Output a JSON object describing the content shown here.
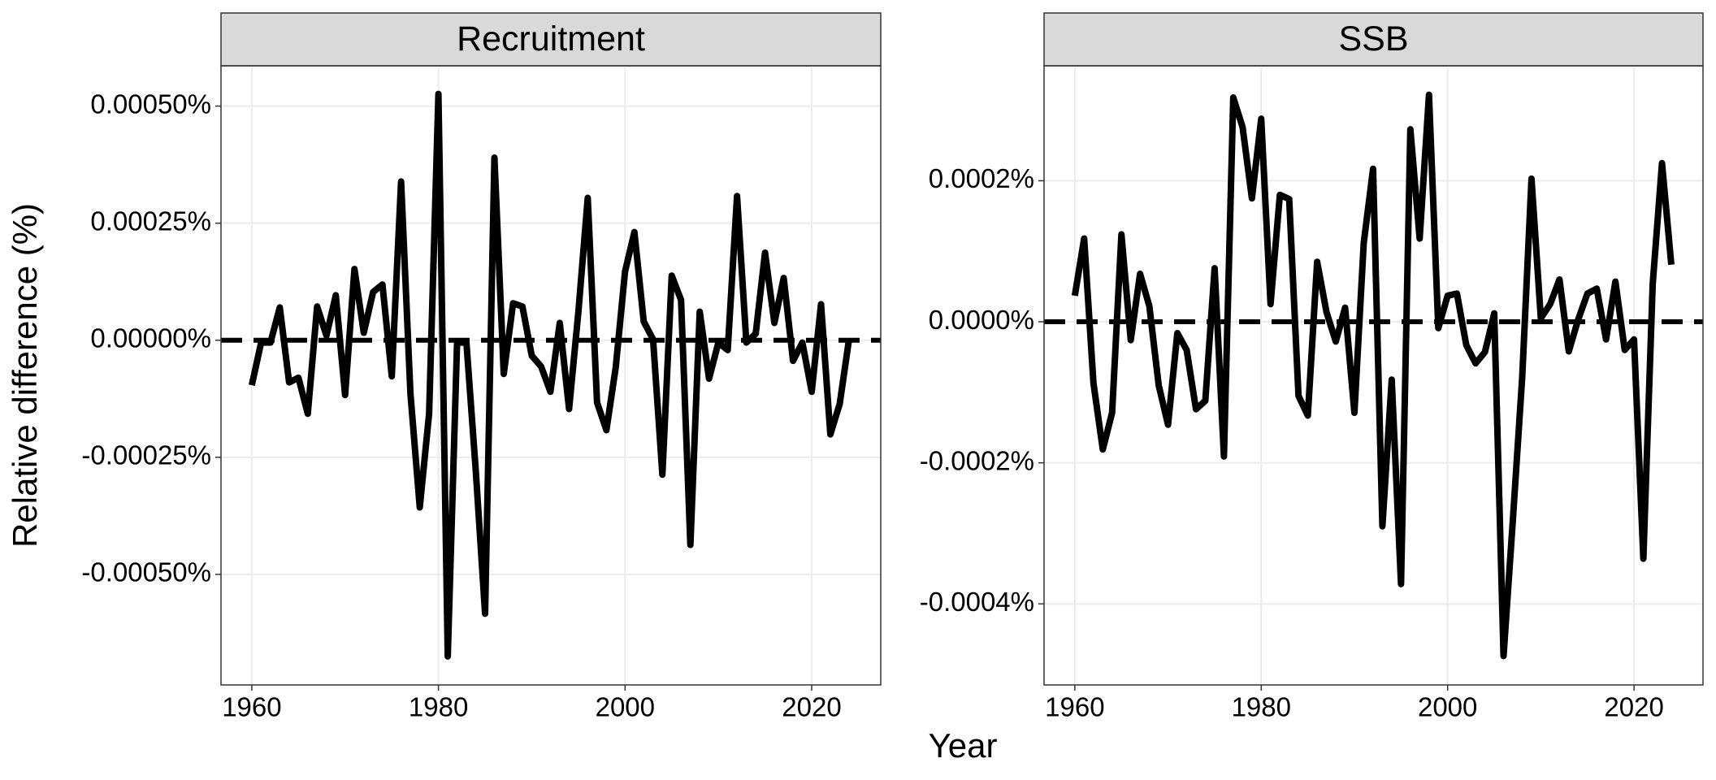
{
  "xlabel": "Year",
  "ylabel": "Relative difference (%)",
  "chart_data": [
    {
      "type": "line",
      "title": "Recruitment",
      "x": [
        1960,
        1961,
        1962,
        1963,
        1964,
        1965,
        1966,
        1967,
        1968,
        1969,
        1970,
        1971,
        1972,
        1973,
        1974,
        1975,
        1976,
        1977,
        1978,
        1979,
        1980,
        1981,
        1982,
        1983,
        1984,
        1985,
        1986,
        1987,
        1988,
        1989,
        1990,
        1991,
        1992,
        1993,
        1994,
        1995,
        1996,
        1997,
        1998,
        1999,
        2000,
        2001,
        2002,
        2003,
        2004,
        2005,
        2006,
        2007,
        2008,
        2009,
        2010,
        2011,
        2012,
        2013,
        2014,
        2015,
        2016,
        2017,
        2018,
        2019,
        2020,
        2021,
        2022,
        2023,
        2024
      ],
      "series": [
        {
          "name": "Recruitment",
          "color": "#000000",
          "values": [
            -9.6e-05,
            -5e-06,
            -5e-06,
            7e-05,
            -9e-05,
            -8e-05,
            -0.000157,
            7.2e-05,
            1e-05,
            9.6e-05,
            -0.000117,
            0.000152,
            1.6e-05,
            0.000103,
            0.000119,
            -7.7e-05,
            0.000339,
            -0.000114,
            -0.000357,
            -0.000157,
            0.000526,
            -0.000675,
            -5e-06,
            -5e-06,
            -0.000278,
            -0.000584,
            0.00039,
            -7.2e-05,
            7.9e-05,
            7.2e-05,
            -3.3e-05,
            -5.6e-05,
            -0.00011,
            3.7e-05,
            -0.000147,
            6.1e-05,
            0.000304,
            -0.000133,
            -0.000192,
            -5.8e-05,
            0.000147,
            0.000231,
            4e-05,
            2e-06,
            -0.000287,
            0.000138,
            8.6e-05,
            -0.000437,
            6.1e-05,
            -8.2e-05,
            -5e-06,
            -2.1e-05,
            0.000308,
            -5e-06,
            1.4e-05,
            0.000187,
            3.7e-05,
            0.000133,
            -4.4e-05,
            -5e-06,
            -0.00011,
            7.7e-05,
            -0.000201,
            -0.000136,
            2e-06
          ]
        }
      ],
      "hline": 0,
      "xlim": [
        1956.7,
        2027.4
      ],
      "xticks": [
        1960,
        1980,
        2000,
        2020
      ],
      "ylim": [
        -0.000736,
        0.000586
      ],
      "yticks": [
        {
          "value": -0.0005,
          "label": "-0.00050%"
        },
        {
          "value": -0.00025,
          "label": "-0.00025%"
        },
        {
          "value": 0,
          "label": "0.00000%"
        },
        {
          "value": 0.00025,
          "label": "0.00025%"
        },
        {
          "value": 0.0005,
          "label": "0.00050%"
        }
      ],
      "grid": true
    },
    {
      "type": "line",
      "title": "SSB",
      "x": [
        1960,
        1961,
        1962,
        1963,
        1964,
        1965,
        1966,
        1967,
        1968,
        1969,
        1970,
        1971,
        1972,
        1973,
        1974,
        1975,
        1976,
        1977,
        1978,
        1979,
        1980,
        1981,
        1982,
        1983,
        1984,
        1985,
        1986,
        1987,
        1988,
        1989,
        1990,
        1991,
        1992,
        1993,
        1994,
        1995,
        1996,
        1997,
        1998,
        1999,
        2000,
        2001,
        2002,
        2003,
        2004,
        2005,
        2006,
        2007,
        2008,
        2009,
        2010,
        2011,
        2012,
        2013,
        2014,
        2015,
        2016,
        2017,
        2018,
        2019,
        2020,
        2021,
        2022,
        2023,
        2024
      ],
      "series": [
        {
          "name": "SSB",
          "color": "#000000",
          "values": [
            3.7e-05,
            0.000118,
            -8.7e-05,
            -0.000181,
            -0.000129,
            0.000124,
            -2.6e-05,
            6.8e-05,
            2.2e-05,
            -9e-05,
            -0.000146,
            -1.6e-05,
            -4e-05,
            -0.000124,
            -0.000112,
            7.6e-05,
            -0.000191,
            0.000318,
            0.000276,
            0.000175,
            0.000288,
            2.5e-05,
            0.00018,
            0.000174,
            -0.000105,
            -0.000133,
            8.5e-05,
            1.4e-05,
            -2.8e-05,
            2e-05,
            -0.000129,
            0.000112,
            0.000217,
            -0.00029,
            -8.2e-05,
            -0.000372,
            0.000273,
            0.000118,
            0.000322,
            -9e-06,
            3.7e-05,
            4e-05,
            -3.3e-05,
            -5.9e-05,
            -4.3e-05,
            1.2e-05,
            -0.000474,
            -0.000281,
            -7.9e-05,
            0.000203,
            5e-06,
            2.5e-05,
            6e-05,
            -4.2e-05,
            3e-06,
            4e-05,
            4.7e-05,
            -2.5e-05,
            5.7e-05,
            -4e-05,
            -2.5e-05,
            -0.000336,
            5.3e-05,
            0.000225,
            8.1e-05
          ]
        }
      ],
      "hline": 0,
      "xlim": [
        1956.7,
        2027.4
      ],
      "xticks": [
        1960,
        1980,
        2000,
        2020
      ],
      "ylim": [
        -0.000515,
        0.000363
      ],
      "yticks": [
        {
          "value": -0.0004,
          "label": "-0.0004%"
        },
        {
          "value": -0.0002,
          "label": "-0.0002%"
        },
        {
          "value": 0,
          "label": "0.0000%"
        },
        {
          "value": 0.0002,
          "label": "0.0002%"
        }
      ],
      "grid": true
    }
  ]
}
